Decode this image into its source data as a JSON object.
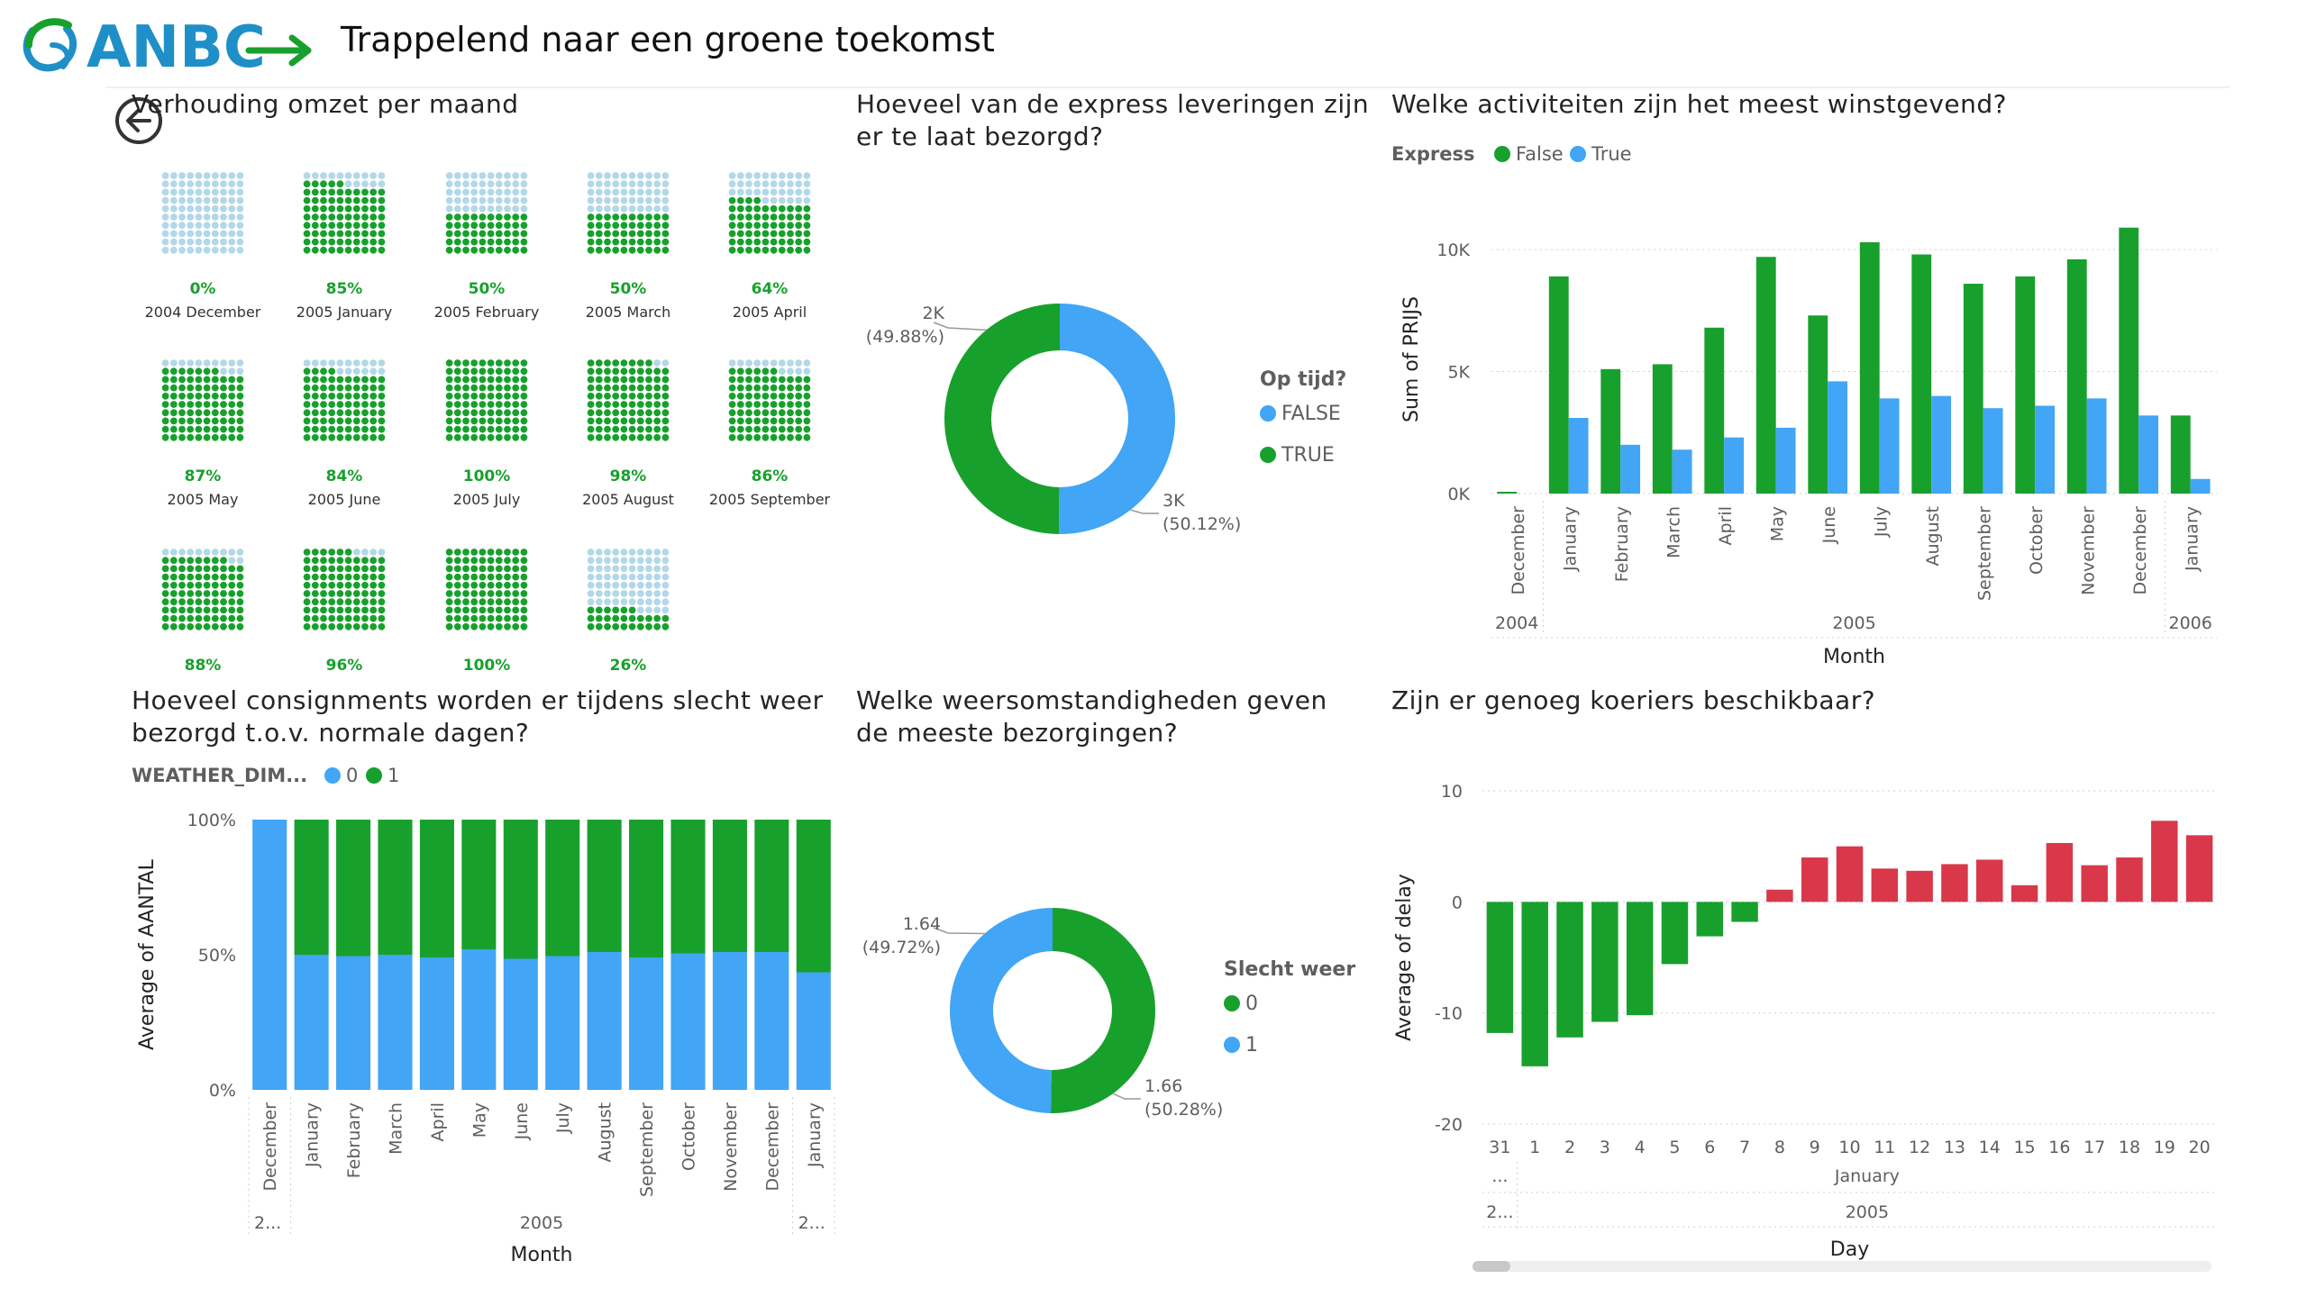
{
  "header": {
    "brand": "ANBC",
    "title": "Trappelend naar een groene toekomst"
  },
  "colors": {
    "green": "#18A02D",
    "blue": "#42A5F5",
    "red": "#D9384A",
    "light_blue": "#B3D8E7",
    "accent": "#1F8FC7"
  },
  "waffle": {
    "title": "Verhouding omzet per maand",
    "items": [
      {
        "pct": 0,
        "label": "0%",
        "month": "2004 December"
      },
      {
        "pct": 85,
        "label": "85%",
        "month": "2005 January"
      },
      {
        "pct": 50,
        "label": "50%",
        "month": "2005 February"
      },
      {
        "pct": 50,
        "label": "50%",
        "month": "2005 March"
      },
      {
        "pct": 64,
        "label": "64%",
        "month": "2005 April"
      },
      {
        "pct": 87,
        "label": "87%",
        "month": "2005 May"
      },
      {
        "pct": 84,
        "label": "84%",
        "month": "2005 June"
      },
      {
        "pct": 100,
        "label": "100%",
        "month": "2005 July"
      },
      {
        "pct": 98,
        "label": "98%",
        "month": "2005 August"
      },
      {
        "pct": 86,
        "label": "86%",
        "month": "2005 September"
      },
      {
        "pct": 88,
        "label": "88%",
        "month": ""
      },
      {
        "pct": 96,
        "label": "96%",
        "month": ""
      },
      {
        "pct": 100,
        "label": "100%",
        "month": ""
      },
      {
        "pct": 26,
        "label": "26%",
        "month": ""
      }
    ]
  },
  "chart_data": [
    {
      "id": "express-donut",
      "type": "pie",
      "title": "Hoeveel van de express leveringen zijn er te laat bezorgd?",
      "legend_title": "Op tijd?",
      "legend_position": "right",
      "slices": [
        {
          "name": "FALSE",
          "value": 50.12,
          "label": "3K",
          "pct_label": "(50.12%)",
          "color": "#42A5F5"
        },
        {
          "name": "TRUE",
          "value": 49.88,
          "label": "2K",
          "pct_label": "(49.88%)",
          "color": "#18A02D"
        }
      ]
    },
    {
      "id": "activities-bar",
      "type": "bar",
      "title": "Welke activiteiten zijn het meest winstgevend?",
      "legend_title": "Express",
      "legend_position": "top-left",
      "categories": [
        "December",
        "January",
        "February",
        "March",
        "April",
        "May",
        "June",
        "July",
        "August",
        "September",
        "October",
        "November",
        "December",
        "January"
      ],
      "year_groups": [
        {
          "label": "2004",
          "span": 1
        },
        {
          "label": "2005",
          "span": 12
        },
        {
          "label": "2006",
          "span": 1
        }
      ],
      "series": [
        {
          "name": "False",
          "color": "#18A02D",
          "values": [
            50,
            8900,
            5100,
            5300,
            6800,
            9700,
            7300,
            10300,
            9800,
            8600,
            8900,
            9600,
            10900,
            3200
          ]
        },
        {
          "name": "True",
          "color": "#42A5F5",
          "values": [
            0,
            3100,
            2000,
            1800,
            2300,
            2700,
            4600,
            3900,
            4000,
            3500,
            3600,
            3900,
            3200,
            600
          ]
        }
      ],
      "xlabel": "Month",
      "ylabel": "Sum of PRIJS",
      "ylim": [
        0,
        11000
      ],
      "yticks": [
        {
          "v": 0,
          "label": "0K"
        },
        {
          "v": 5000,
          "label": "5K"
        },
        {
          "v": 10000,
          "label": "10K"
        }
      ],
      "grid": true
    },
    {
      "id": "consignments-stacked",
      "type": "bar",
      "stacked": "percent",
      "title": "Hoeveel consignments worden er tijdens slecht weer bezorgd t.o.v. normale dagen?",
      "legend_title": "WEATHER_DIM...",
      "legend_position": "top-left",
      "categories": [
        "December",
        "January",
        "February",
        "March",
        "April",
        "May",
        "June",
        "July",
        "August",
        "September",
        "October",
        "November",
        "December",
        "January"
      ],
      "year_groups": [
        {
          "label": "2...",
          "span": 1
        },
        {
          "label": "2005",
          "span": 12
        },
        {
          "label": "2...",
          "span": 1
        }
      ],
      "series": [
        {
          "name": "0",
          "color": "#42A5F5",
          "values": [
            100,
            50,
            49.5,
            50,
            49,
            52,
            48.5,
            49.5,
            51,
            49,
            50.5,
            51,
            51,
            43.5
          ]
        },
        {
          "name": "1",
          "color": "#18A02D",
          "values": [
            0,
            50,
            50.5,
            50,
            51,
            48,
            51.5,
            50.5,
            49,
            51,
            49.5,
            49,
            49,
            56.5
          ]
        }
      ],
      "xlabel": "Month",
      "ylabel": "Average of AANTAL",
      "ylim": [
        0,
        100
      ],
      "yticks": [
        {
          "v": 0,
          "label": "0%"
        },
        {
          "v": 50,
          "label": "50%"
        },
        {
          "v": 100,
          "label": "100%"
        }
      ]
    },
    {
      "id": "weather-donut",
      "type": "pie",
      "title": "Welke weersomstandigheden geven de meeste bezorgingen?",
      "legend_title": "Slecht weer",
      "legend_position": "right",
      "slices": [
        {
          "name": "0",
          "value": 50.28,
          "label": "1.66",
          "pct_label": "(50.28%)",
          "color": "#18A02D"
        },
        {
          "name": "1",
          "value": 49.72,
          "label": "1.64",
          "pct_label": "(49.72%)",
          "color": "#42A5F5"
        }
      ]
    },
    {
      "id": "couriers-bar",
      "type": "bar",
      "title": "Zijn er genoeg koeriers beschikbaar?",
      "categories": [
        "31",
        "1",
        "2",
        "3",
        "4",
        "5",
        "6",
        "7",
        "8",
        "9",
        "10",
        "11",
        "12",
        "13",
        "14",
        "15",
        "16",
        "17",
        "18",
        "19",
        "20"
      ],
      "month_groups": [
        {
          "label": "...",
          "span": 1
        },
        {
          "label": "January",
          "span": 20
        }
      ],
      "year_groups": [
        {
          "label": "2...",
          "span": 1
        },
        {
          "label": "2005",
          "span": 20
        }
      ],
      "values": [
        -11.8,
        -14.8,
        -12.2,
        -10.8,
        -10.2,
        -5.6,
        -3.1,
        -1.8,
        1.1,
        4.0,
        5.0,
        3.0,
        2.8,
        3.4,
        3.8,
        1.5,
        5.3,
        3.3,
        4.0,
        7.3,
        6.0
      ],
      "positive_color": "#D9384A",
      "negative_color": "#18A02D",
      "xlabel": "Day",
      "ylabel": "Average of delay",
      "ylim": [
        -20,
        10
      ],
      "yticks": [
        {
          "v": 10,
          "label": "10"
        },
        {
          "v": 0,
          "label": "0"
        },
        {
          "v": -10,
          "label": "-10"
        },
        {
          "v": -20,
          "label": "-20"
        }
      ]
    }
  ]
}
